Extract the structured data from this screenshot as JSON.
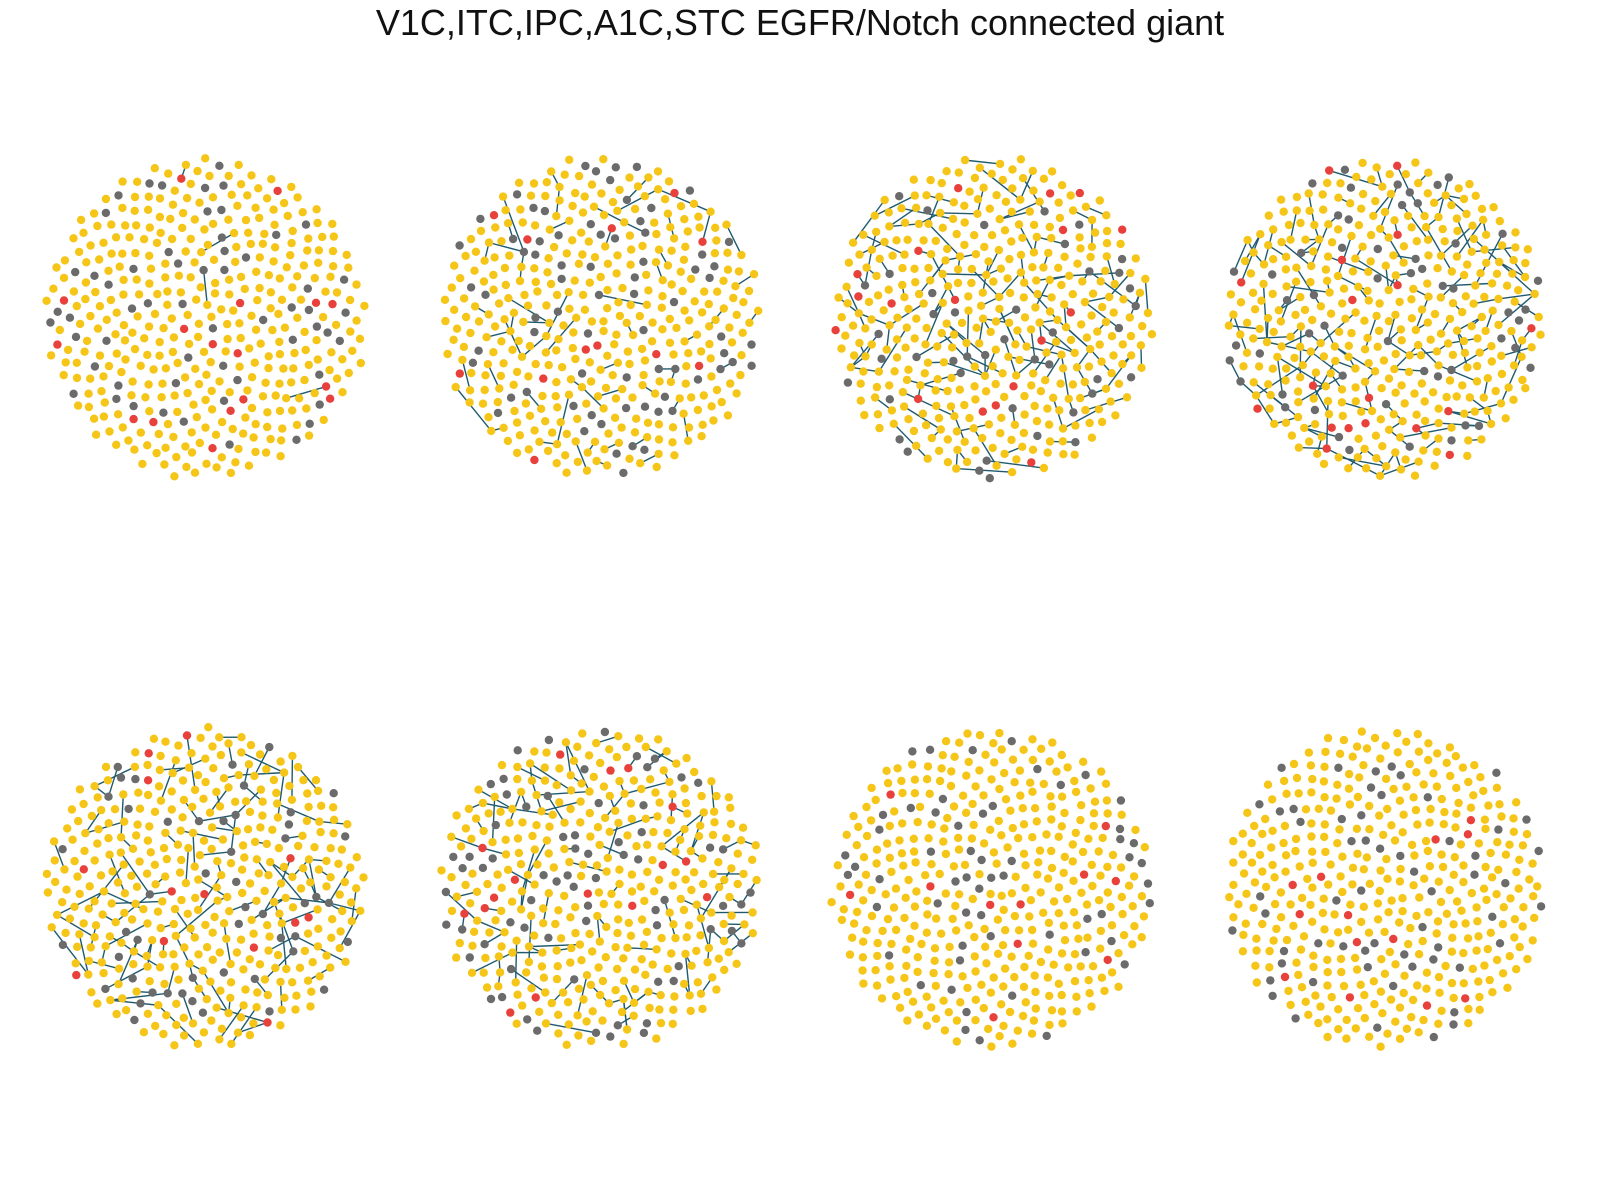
{
  "title": "V1C,ITC,IPC,A1C,STC EGFR/Notch connected giant",
  "colors": {
    "node_yellow": "#F5C518",
    "node_gray": "#6B6B6B",
    "node_red": "#E8413C",
    "edge": "#1F5A6E",
    "background": "#FFFFFF"
  },
  "layout_grid": {
    "rows": 2,
    "columns": 4
  },
  "panels": [
    {
      "node_count": 420,
      "gray_fraction": 0.14,
      "red_fraction": 0.035,
      "edge_count": 4
    },
    {
      "node_count": 420,
      "gray_fraction": 0.16,
      "red_fraction": 0.03,
      "edge_count": 60
    },
    {
      "node_count": 420,
      "gray_fraction": 0.12,
      "red_fraction": 0.03,
      "edge_count": 150
    },
    {
      "node_count": 420,
      "gray_fraction": 0.12,
      "red_fraction": 0.03,
      "edge_count": 170
    },
    {
      "node_count": 420,
      "gray_fraction": 0.13,
      "red_fraction": 0.03,
      "edge_count": 130
    },
    {
      "node_count": 420,
      "gray_fraction": 0.15,
      "red_fraction": 0.035,
      "edge_count": 110
    },
    {
      "node_count": 420,
      "gray_fraction": 0.15,
      "red_fraction": 0.035,
      "edge_count": 0
    },
    {
      "node_count": 420,
      "gray_fraction": 0.12,
      "red_fraction": 0.03,
      "edge_count": 0
    }
  ]
}
